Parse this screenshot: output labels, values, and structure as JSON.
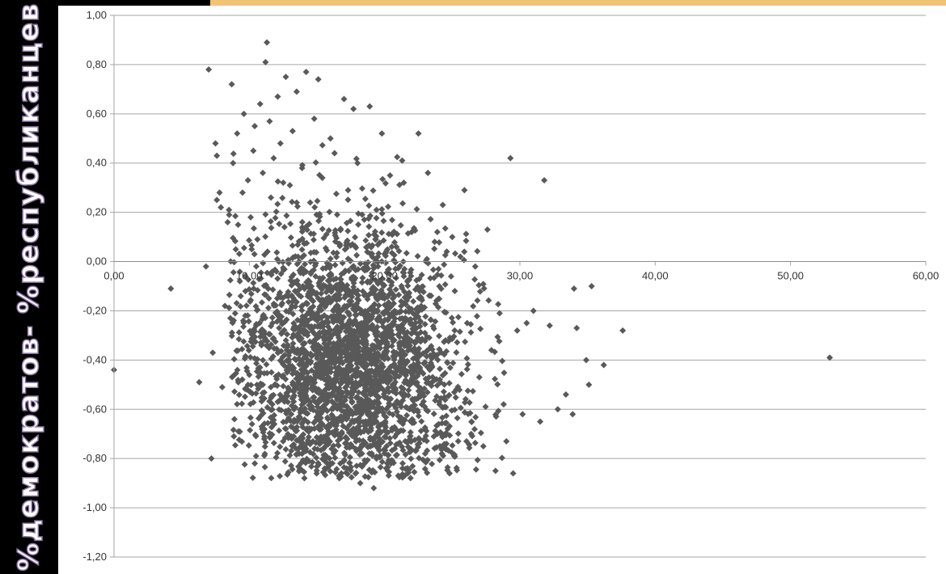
{
  "y_axis_title": "%демократов- %республиканцев",
  "colors": {
    "marker": "#595959",
    "grid": "#a6a6a6",
    "accent_bar": "#f3c374",
    "background": "#000000"
  },
  "chart_data": {
    "type": "scatter",
    "title": "",
    "xlabel": "",
    "ylabel": "%демократов- %республиканцев",
    "xlim": [
      0,
      60
    ],
    "ylim": [
      -1.2,
      1.0
    ],
    "x_ticks": [
      "0,00",
      "10,00",
      "20,00",
      "30,00",
      "40,00",
      "50,00",
      "60,00"
    ],
    "y_ticks": [
      "1,00",
      "0,80",
      "0,60",
      "0,40",
      "0,20",
      "0,00",
      "-0,20",
      "-0,40",
      "-0,60",
      "-0,80",
      "-1,00",
      "-1,20"
    ],
    "grid": "horizontal",
    "marker": "diamond",
    "series": [
      {
        "name": "",
        "points": [
          [
            0.0,
            -0.44
          ],
          [
            4.2,
            -0.11
          ],
          [
            6.3,
            -0.49
          ],
          [
            6.8,
            -0.02
          ],
          [
            7.0,
            0.78
          ],
          [
            7.2,
            -0.8
          ],
          [
            7.3,
            -0.37
          ],
          [
            7.5,
            0.48
          ],
          [
            7.6,
            0.43
          ],
          [
            7.6,
            0.25
          ],
          [
            7.8,
            0.28
          ],
          [
            7.9,
            0.22
          ],
          [
            8.0,
            -0.51
          ],
          [
            8.2,
            -0.18
          ],
          [
            8.4,
            0.16
          ],
          [
            8.5,
            0.21
          ],
          [
            8.6,
            -0.23
          ],
          [
            8.7,
            0.72
          ],
          [
            8.8,
            0.4
          ],
          [
            8.9,
            -0.64
          ],
          [
            9.0,
            0.05
          ],
          [
            9.1,
            0.52
          ],
          [
            9.2,
            -0.69
          ],
          [
            9.3,
            -0.08
          ],
          [
            9.5,
            0.28
          ],
          [
            9.6,
            0.6
          ],
          [
            9.7,
            -0.22
          ],
          [
            9.9,
            0.33
          ],
          [
            10.0,
            -0.46
          ],
          [
            10.1,
            0.18
          ],
          [
            10.2,
            -0.66
          ],
          [
            10.3,
            0.45
          ],
          [
            10.4,
            0.55
          ],
          [
            10.5,
            -0.79
          ],
          [
            10.6,
            0.09
          ],
          [
            10.8,
            0.64
          ],
          [
            10.9,
            -0.34
          ],
          [
            11.0,
            0.36
          ],
          [
            11.1,
            -0.72
          ],
          [
            11.2,
            0.81
          ],
          [
            11.3,
            0.89
          ],
          [
            11.4,
            -0.11
          ],
          [
            11.5,
            0.57
          ],
          [
            11.6,
            0.26
          ],
          [
            11.7,
            -0.58
          ],
          [
            11.8,
            0.42
          ],
          [
            12.0,
            -0.04
          ],
          [
            12.1,
            0.67
          ],
          [
            12.2,
            -0.27
          ],
          [
            12.3,
            0.48
          ],
          [
            12.5,
            -0.73
          ],
          [
            12.6,
            0.14
          ],
          [
            12.7,
            0.75
          ],
          [
            12.8,
            -0.45
          ],
          [
            13.0,
            0.31
          ],
          [
            13.1,
            -0.62
          ],
          [
            13.2,
            0.53
          ],
          [
            13.4,
            -0.16
          ],
          [
            13.5,
            0.69
          ],
          [
            13.6,
            0.02
          ],
          [
            13.8,
            -0.52
          ],
          [
            13.9,
            0.38
          ],
          [
            14.0,
            -0.81
          ],
          [
            14.2,
            0.77
          ],
          [
            14.3,
            -0.3
          ],
          [
            14.5,
            0.24
          ],
          [
            14.6,
            -0.68
          ],
          [
            14.8,
            0.58
          ],
          [
            14.9,
            -0.06
          ],
          [
            15.1,
            0.74
          ],
          [
            15.2,
            -0.41
          ],
          [
            15.4,
            0.34
          ],
          [
            15.5,
            -0.76
          ],
          [
            15.7,
            0.11
          ],
          [
            15.9,
            -0.55
          ],
          [
            16.0,
            0.5
          ],
          [
            16.2,
            -0.2
          ],
          [
            16.3,
            0.44
          ],
          [
            16.5,
            -0.64
          ],
          [
            16.7,
            0.07
          ],
          [
            16.8,
            -0.36
          ],
          [
            17.0,
            0.66
          ],
          [
            17.2,
            -0.84
          ],
          [
            17.3,
            0.29
          ],
          [
            17.5,
            -0.48
          ],
          [
            17.7,
            0.62
          ],
          [
            17.8,
            -0.12
          ],
          [
            18.0,
            0.4
          ],
          [
            18.2,
            -0.9
          ],
          [
            18.3,
            -0.26
          ],
          [
            18.5,
            0.17
          ],
          [
            18.7,
            -0.6
          ],
          [
            18.9,
            0.63
          ],
          [
            19.0,
            -0.38
          ],
          [
            19.2,
            -0.92
          ],
          [
            19.4,
            0.21
          ],
          [
            19.6,
            -0.7
          ],
          [
            19.8,
            0.52
          ],
          [
            20.0,
            -0.15
          ],
          [
            20.2,
            -0.82
          ],
          [
            20.4,
            0.35
          ],
          [
            20.6,
            -0.5
          ],
          [
            20.8,
            -0.03
          ],
          [
            21.0,
            -0.74
          ],
          [
            21.3,
            0.41
          ],
          [
            21.5,
            -0.29
          ],
          [
            21.7,
            -0.86
          ],
          [
            22.0,
            0.12
          ],
          [
            22.2,
            -0.56
          ],
          [
            22.5,
            0.52
          ],
          [
            22.7,
            -0.18
          ],
          [
            23.0,
            -0.78
          ],
          [
            23.2,
            0.36
          ],
          [
            23.5,
            -0.43
          ],
          [
            23.7,
            0.08
          ],
          [
            24.0,
            -0.66
          ],
          [
            24.3,
            0.23
          ],
          [
            24.5,
            -0.32
          ],
          [
            24.8,
            -0.86
          ],
          [
            25.0,
            0.1
          ],
          [
            25.3,
            -0.52
          ],
          [
            25.6,
            0.02
          ],
          [
            25.9,
            0.29
          ],
          [
            26.1,
            -0.25
          ],
          [
            26.4,
            -0.7
          ],
          [
            26.7,
            -0.02
          ],
          [
            27.0,
            -0.47
          ],
          [
            27.3,
            -0.75
          ],
          [
            27.6,
            0.13
          ],
          [
            27.9,
            -0.36
          ],
          [
            28.2,
            -0.85
          ],
          [
            28.5,
            -0.21
          ],
          [
            28.8,
            -0.58
          ],
          [
            29.0,
            -0.73
          ],
          [
            29.3,
            0.42
          ],
          [
            29.5,
            -0.86
          ],
          [
            29.8,
            -0.28
          ],
          [
            30.2,
            -0.62
          ],
          [
            30.5,
            -0.25
          ],
          [
            31.0,
            -0.2
          ],
          [
            31.5,
            -0.65
          ],
          [
            31.8,
            0.33
          ],
          [
            32.2,
            -0.26
          ],
          [
            32.8,
            -0.6
          ],
          [
            33.4,
            -0.54
          ],
          [
            33.9,
            -0.62
          ],
          [
            34.0,
            -0.11
          ],
          [
            34.2,
            -0.27
          ],
          [
            34.9,
            -0.4
          ],
          [
            35.1,
            -0.5
          ],
          [
            35.3,
            -0.1
          ],
          [
            36.2,
            -0.42
          ],
          [
            37.6,
            -0.28
          ],
          [
            52.9,
            -0.39
          ]
        ]
      }
    ],
    "dense_cluster": {
      "x_center": 17.5,
      "y_center": -0.4,
      "point_count": 2800
    }
  }
}
